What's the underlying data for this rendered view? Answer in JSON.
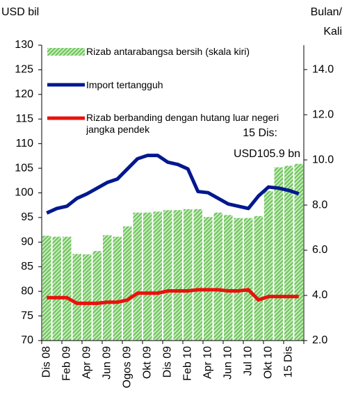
{
  "chart_data": {
    "type": "bar_line",
    "ylabel": "USD bil",
    "y2label": [
      "Bulan/",
      "Kali"
    ],
    "annotation": [
      "15 Dis:",
      "USD105.9 bn"
    ],
    "categories": [
      "Dis 08",
      null,
      "Feb 09",
      null,
      "Apr 09",
      null,
      "Jun 09",
      null,
      "Ogos 09",
      null,
      "Okt 09",
      null,
      "Dis 09",
      null,
      "Feb 10",
      null,
      "Apr 10",
      null,
      "Jun 10",
      null,
      "Jul 10",
      null,
      "Okt 10",
      null,
      "15 Dis",
      null
    ],
    "series": [
      {
        "name": "Rizab antarabangsa bersih (skala kiri)",
        "type": "bar",
        "color": "#7ccf6a",
        "axis": "y",
        "values": [
          91.3,
          91.1,
          91.1,
          87.6,
          87.5,
          88.2,
          91.4,
          91.1,
          93.2,
          96.0,
          96.0,
          96.2,
          96.5,
          96.5,
          96.7,
          96.7,
          95.1,
          96.0,
          95.5,
          94.9,
          94.9,
          95.3,
          100.4,
          105.2,
          105.5,
          105.9
        ]
      },
      {
        "name": "Import tertangguh",
        "type": "line",
        "color": "#00188f",
        "axis": "y2",
        "values": [
          7.65,
          7.85,
          7.95,
          8.3,
          8.5,
          8.75,
          9.0,
          9.15,
          9.6,
          10.05,
          10.2,
          10.2,
          9.9,
          9.8,
          9.6,
          8.6,
          8.55,
          8.3,
          8.05,
          7.95,
          7.85,
          8.4,
          8.8,
          8.75,
          8.65,
          8.5
        ]
      },
      {
        "name": "Rizab berbanding dengan hutang luar negeri jangka pendek",
        "type": "line",
        "color": "#e8120c",
        "axis": "y2",
        "values": [
          3.9,
          3.9,
          3.9,
          3.65,
          3.65,
          3.65,
          3.7,
          3.7,
          3.8,
          4.1,
          4.1,
          4.1,
          4.2,
          4.2,
          4.2,
          4.25,
          4.25,
          4.25,
          4.2,
          4.2,
          4.25,
          3.8,
          3.95,
          3.95,
          3.95,
          3.95
        ]
      }
    ],
    "ylim": [
      70,
      130
    ],
    "yticks": [
      70,
      75,
      80,
      85,
      90,
      95,
      100,
      105,
      110,
      115,
      120,
      125,
      130
    ],
    "y2lim": [
      2,
      15.08
    ],
    "y2ticks": [
      {
        "value": 2,
        "label": "2.0"
      },
      {
        "value": 4,
        "label": "4.0"
      },
      {
        "value": 6,
        "label": "6.0"
      },
      {
        "value": 8,
        "label": "8.0"
      },
      {
        "value": 10,
        "label": "10.0"
      },
      {
        "value": 12,
        "label": "12.0"
      },
      {
        "value": 14,
        "label": "14.0"
      }
    ],
    "grid": false
  }
}
